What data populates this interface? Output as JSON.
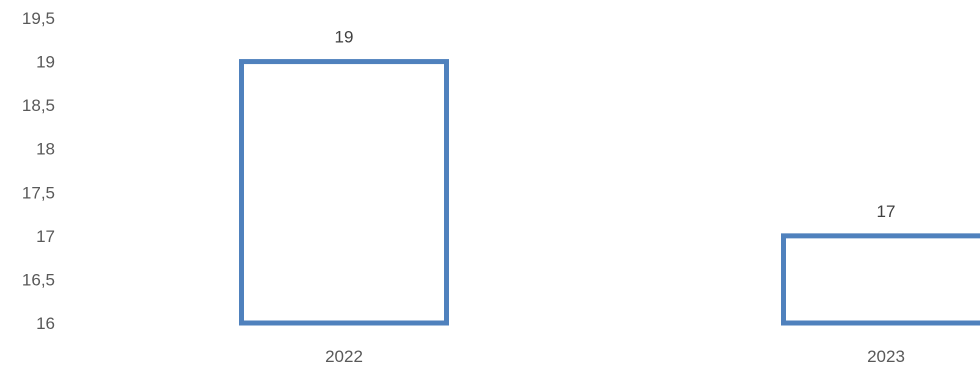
{
  "chart_data": {
    "type": "bar",
    "title": "",
    "xlabel": "",
    "ylabel": "",
    "categories": [
      "2022",
      "2023"
    ],
    "values": [
      19,
      17
    ],
    "data_labels": [
      "19",
      "17"
    ],
    "ylim": [
      16,
      19.5
    ],
    "y_ticks": [
      16,
      16.5,
      17,
      17.5,
      18,
      18.5,
      19,
      19.5
    ],
    "y_tick_labels": [
      "16",
      "16,5",
      "17",
      "17,5",
      "18",
      "18,5",
      "19",
      "19,5"
    ],
    "grid": false,
    "legend": "none",
    "bar_style": "outline",
    "bar_outline_color": "#4f81bd",
    "bar_fill_color": "#ffffff"
  }
}
